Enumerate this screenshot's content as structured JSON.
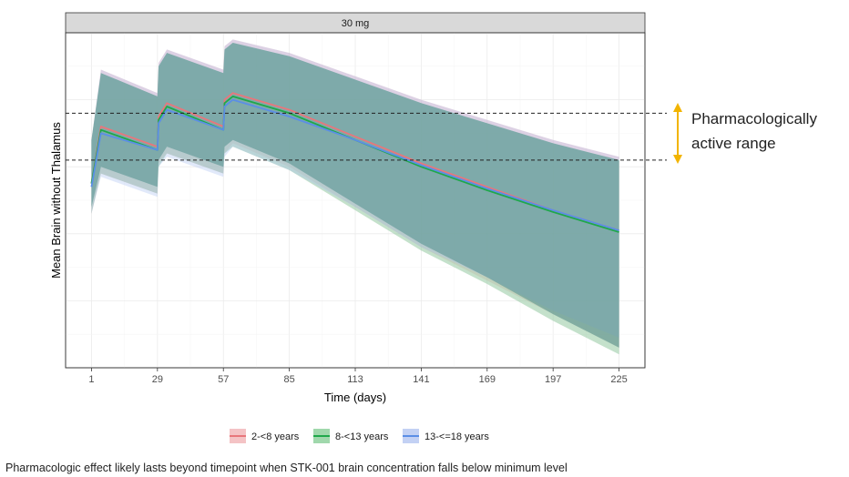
{
  "chart_data": {
    "type": "area",
    "facet_label": "30 mg",
    "xlabel": "Time (days)",
    "ylabel": "Mean Brain without Thalamus",
    "x_ticks": [
      1,
      29,
      57,
      85,
      113,
      141,
      169,
      197,
      225
    ],
    "xlim": [
      -10,
      236
    ],
    "ylim": [
      0,
      100
    ],
    "y_ticks_labeled": false,
    "grid": true,
    "dose_days": [
      1,
      29,
      57
    ],
    "reference_lines": [
      76,
      62
    ],
    "series": [
      {
        "name": "2-<8 years",
        "color": "#e8767b",
        "band_color": "#f2b8bb",
        "median": [
          [
            1,
            55
          ],
          [
            5,
            72
          ],
          [
            29,
            66
          ],
          [
            29.5,
            75
          ],
          [
            33,
            79
          ],
          [
            57,
            72
          ],
          [
            57.5,
            80
          ],
          [
            61,
            82
          ],
          [
            85,
            77
          ],
          [
            113,
            69
          ],
          [
            141,
            61
          ],
          [
            169,
            54
          ],
          [
            197,
            47
          ],
          [
            225,
            41
          ]
        ],
        "upper": [
          [
            1,
            68
          ],
          [
            5,
            89
          ],
          [
            29,
            82
          ],
          [
            29.5,
            91
          ],
          [
            33,
            95
          ],
          [
            57,
            89
          ],
          [
            57.5,
            96
          ],
          [
            61,
            98
          ],
          [
            85,
            94
          ],
          [
            113,
            87
          ],
          [
            141,
            80
          ],
          [
            169,
            74
          ],
          [
            197,
            68
          ],
          [
            225,
            63
          ]
        ],
        "lower": [
          [
            1,
            46
          ],
          [
            5,
            58
          ],
          [
            29,
            52
          ],
          [
            29.5,
            61
          ],
          [
            33,
            64
          ],
          [
            57,
            58
          ],
          [
            57.5,
            64
          ],
          [
            61,
            67
          ],
          [
            85,
            60
          ],
          [
            113,
            48
          ],
          [
            141,
            36
          ],
          [
            169,
            26
          ],
          [
            197,
            16
          ],
          [
            225,
            6
          ]
        ]
      },
      {
        "name": "8-<13 years",
        "color": "#1fa84a",
        "band_color": "#8fd19e",
        "median": [
          [
            1,
            55
          ],
          [
            5,
            71
          ],
          [
            29,
            65
          ],
          [
            29.5,
            74
          ],
          [
            33,
            78
          ],
          [
            57,
            71
          ],
          [
            57.5,
            79
          ],
          [
            61,
            81
          ],
          [
            85,
            76
          ],
          [
            113,
            68
          ],
          [
            141,
            60
          ],
          [
            169,
            53
          ],
          [
            197,
            46.5
          ],
          [
            225,
            40.5
          ]
        ],
        "upper": [
          [
            1,
            68
          ],
          [
            5,
            88
          ],
          [
            29,
            81
          ],
          [
            29.5,
            90
          ],
          [
            33,
            94
          ],
          [
            57,
            88
          ],
          [
            57.5,
            95
          ],
          [
            61,
            97
          ],
          [
            85,
            93
          ],
          [
            113,
            86
          ],
          [
            141,
            79
          ],
          [
            169,
            73
          ],
          [
            197,
            67
          ],
          [
            225,
            62
          ]
        ],
        "lower": [
          [
            1,
            46
          ],
          [
            5,
            58
          ],
          [
            29,
            52
          ],
          [
            29.5,
            60
          ],
          [
            33,
            64
          ],
          [
            57,
            58
          ],
          [
            57.5,
            64
          ],
          [
            61,
            66
          ],
          [
            85,
            59
          ],
          [
            113,
            47
          ],
          [
            141,
            35
          ],
          [
            169,
            25
          ],
          [
            197,
            14
          ],
          [
            225,
            4
          ]
        ]
      },
      {
        "name": "13-<=18 years",
        "color": "#5b8ee6",
        "band_color": "#b8c9f2",
        "median": [
          [
            1,
            54
          ],
          [
            5,
            70
          ],
          [
            29,
            65
          ],
          [
            29.5,
            73
          ],
          [
            33,
            77
          ],
          [
            57,
            71
          ],
          [
            57.5,
            78
          ],
          [
            61,
            80
          ],
          [
            85,
            75
          ],
          [
            113,
            68
          ],
          [
            141,
            60.5
          ],
          [
            169,
            53.5
          ],
          [
            197,
            47
          ],
          [
            225,
            41
          ]
        ],
        "upper": [
          [
            1,
            68
          ],
          [
            5,
            89
          ],
          [
            29,
            82
          ],
          [
            29.5,
            91
          ],
          [
            33,
            95
          ],
          [
            57,
            89
          ],
          [
            57.5,
            96
          ],
          [
            61,
            98
          ],
          [
            85,
            94
          ],
          [
            113,
            87
          ],
          [
            141,
            80
          ],
          [
            169,
            74
          ],
          [
            197,
            68
          ],
          [
            225,
            63
          ]
        ],
        "lower": [
          [
            1,
            46
          ],
          [
            5,
            57
          ],
          [
            29,
            51
          ],
          [
            29.5,
            60
          ],
          [
            33,
            63
          ],
          [
            57,
            57
          ],
          [
            57.5,
            63
          ],
          [
            61,
            66
          ],
          [
            85,
            59
          ],
          [
            113,
            48
          ],
          [
            141,
            36
          ],
          [
            169,
            27
          ],
          [
            197,
            17
          ],
          [
            225,
            9
          ]
        ]
      }
    ],
    "annotation": {
      "lines": [
        "Pharmacologically",
        "active range"
      ],
      "arrow_color": "#f2b400"
    },
    "legend_position": "bottom"
  },
  "footer_note": "Pharmacologic effect likely lasts beyond timepoint when STK-001 brain concentration falls below minimum level"
}
